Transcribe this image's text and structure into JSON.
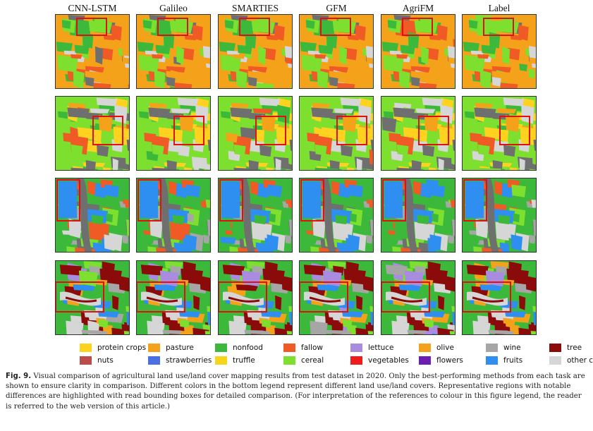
{
  "figure": {
    "methods": [
      "CNN-LSTM",
      "Galileo",
      "SMARTIES",
      "GFM",
      "AgriFM",
      "Label"
    ],
    "legend": [
      {
        "label": "protein crops",
        "color": "#ffd21f"
      },
      {
        "label": "nuts",
        "color": "#bd4b4b"
      },
      {
        "label": "pasture",
        "color": "#f5a21b"
      },
      {
        "label": "strawberries",
        "color": "#4a6fe0"
      },
      {
        "label": "nonfood",
        "color": "#3cb93a"
      },
      {
        "label": "truffle",
        "color": "#f7d51b"
      },
      {
        "label": "fallow",
        "color": "#f05a24"
      },
      {
        "label": "cereal",
        "color": "#7ddf2e"
      },
      {
        "label": "lettuce",
        "color": "#a98be0"
      },
      {
        "label": "vegetables",
        "color": "#ee1c1c"
      },
      {
        "label": "olive",
        "color": "#f5a21b"
      },
      {
        "label": "flowers",
        "color": "#6a1fb0"
      },
      {
        "label": "wine",
        "color": "#a6a6a6"
      },
      {
        "label": "fruits",
        "color": "#2e8ff0"
      },
      {
        "label": "tree",
        "color": "#8b0a0a"
      },
      {
        "label": "other crops",
        "color": "#d6d6d6"
      }
    ]
  },
  "caption": {
    "label": "Fig. 9.",
    "text": "Visual comparison of agricultural land use/land cover mapping results from test dataset in 2020. Only the best-performing methods from each task are shown to ensure clarity in comparison. Different colors in the bottom legend represent different land use/land covers. Representative regions with notable differences are highlighted with read bounding boxes for detailed comparison. (For interpretation of the references to colour in this figure legend, the reader is referred to the web version of this article.)"
  }
}
